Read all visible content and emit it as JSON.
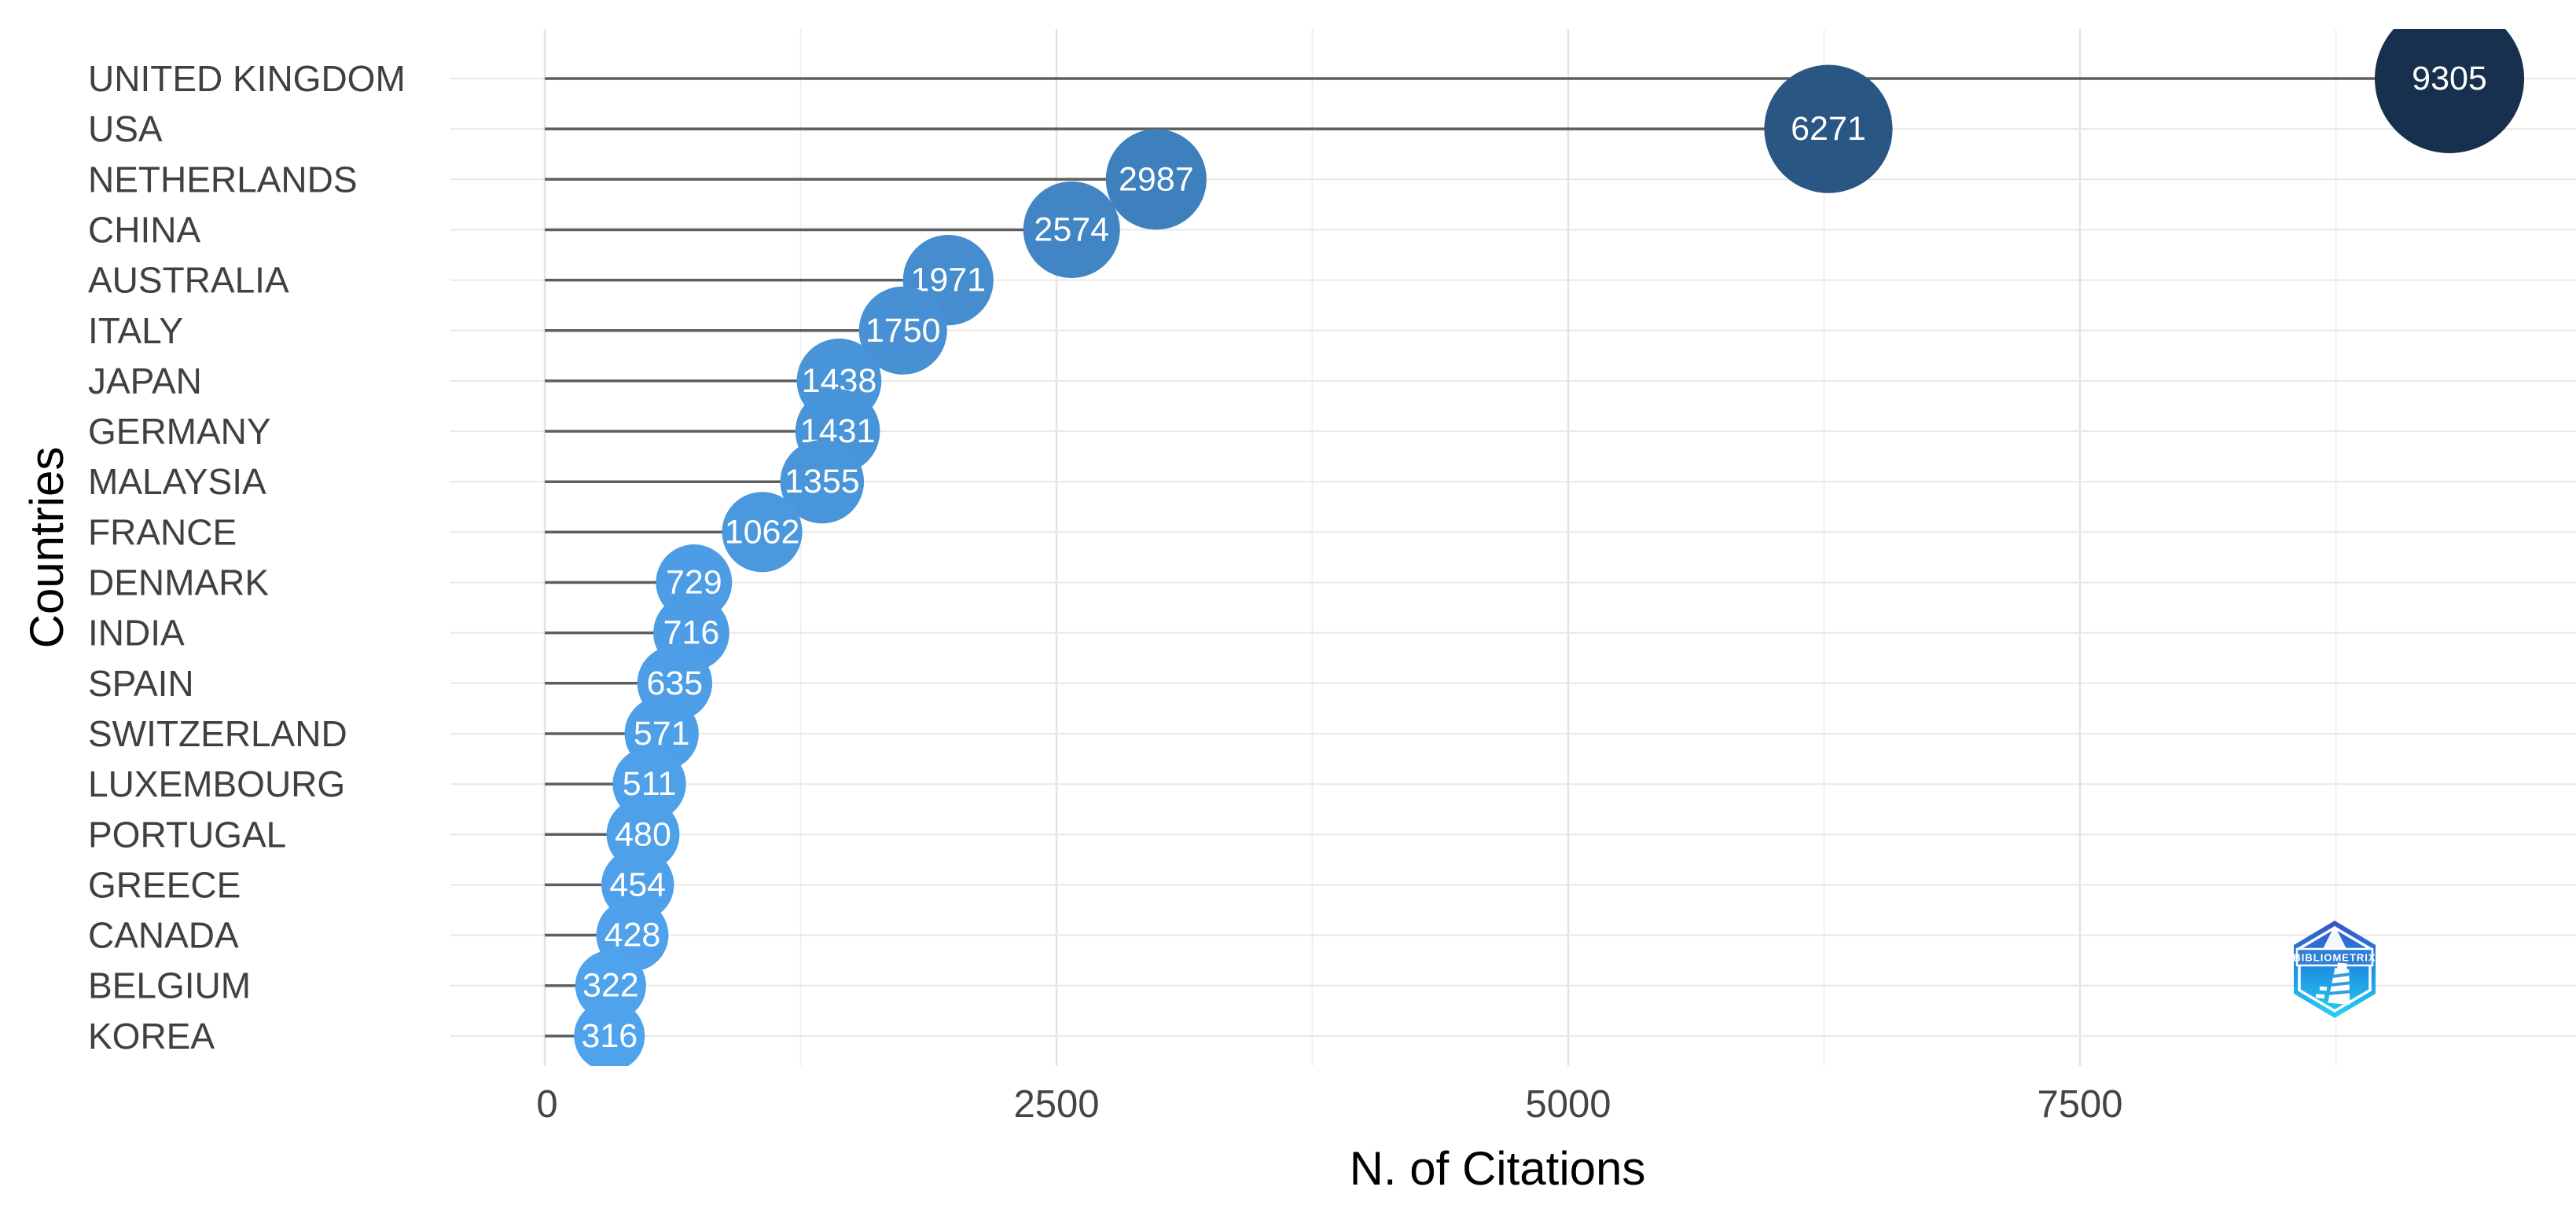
{
  "chart_data": {
    "type": "scatter",
    "variant": "lollipop-bubble",
    "title": "",
    "xlabel": "N. of Citations",
    "ylabel": "Countries",
    "categories": [
      "UNITED KINGDOM",
      "USA",
      "NETHERLANDS",
      "CHINA",
      "AUSTRALIA",
      "ITALY",
      "JAPAN",
      "GERMANY",
      "MALAYSIA",
      "FRANCE",
      "DENMARK",
      "INDIA",
      "SPAIN",
      "SWITZERLAND",
      "LUXEMBOURG",
      "PORTUGAL",
      "GREECE",
      "CANADA",
      "BELGIUM",
      "KOREA"
    ],
    "values": [
      9305,
      6271,
      2987,
      2574,
      1971,
      1750,
      1438,
      1431,
      1355,
      1062,
      729,
      716,
      635,
      571,
      511,
      480,
      454,
      428,
      322,
      316
    ],
    "point_labels": [
      "9305",
      "6271",
      "2987",
      "2574",
      "1971",
      "1750",
      "1438",
      "1431",
      "1355",
      "1062",
      "729",
      "716",
      "635",
      "571",
      "511",
      "480",
      "454",
      "428",
      "322",
      "316"
    ],
    "x_ticks": [
      0,
      2500,
      5000,
      7500
    ],
    "x_tick_labels": [
      "0",
      "2500",
      "5000",
      "7500"
    ],
    "x_minor_ticks": [
      1250,
      3750,
      6250,
      8750
    ],
    "xlim": [
      -460,
      9925
    ],
    "grid": true,
    "legend": "none",
    "colors": {
      "bubble_low": "#4FA2EC",
      "bubble_high": "#16304D",
      "stem": "#5E5E5E",
      "grid_major": "#E3E3E3",
      "grid_minor": "#F0F0F0",
      "grid_row": "#E8E8E8",
      "tick_text": "#444444",
      "category_text": "#404040",
      "title_text": "#000000",
      "bubble_text": "#FFFFFF"
    }
  },
  "logo": {
    "text": "BIBLIOMETRIX",
    "colors": {
      "top": "#3A51C8",
      "mid": "#1E90E0",
      "bottom": "#25D2F2",
      "band": "#2F7FD6"
    }
  }
}
